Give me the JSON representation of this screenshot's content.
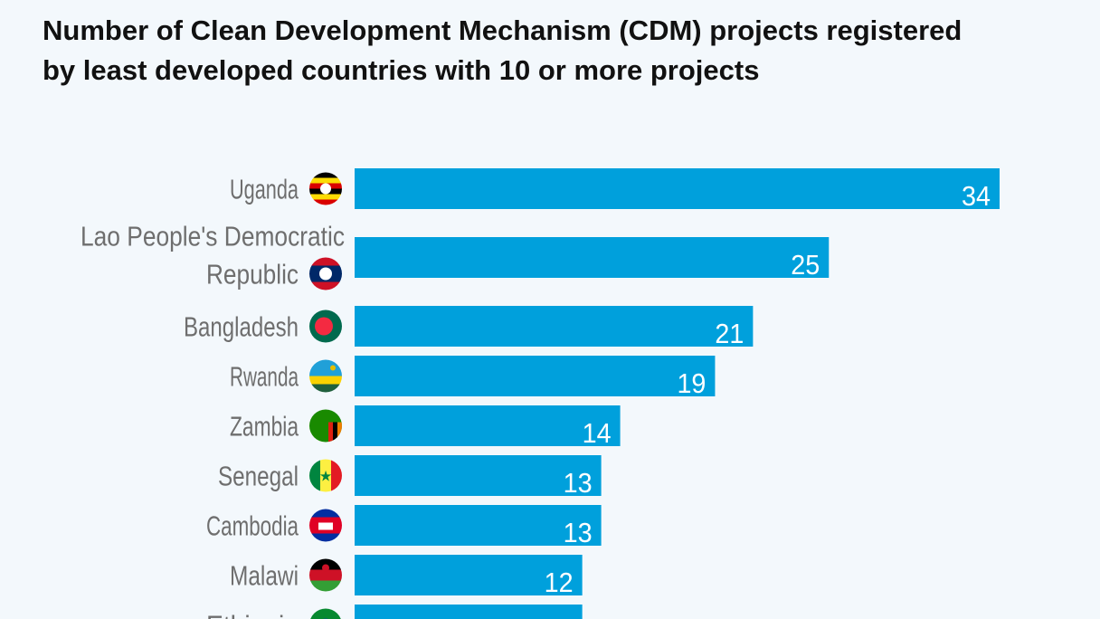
{
  "chart_data": {
    "type": "bar",
    "orientation": "horizontal",
    "title": "Number of Clean Development Mechanism (CDM) projects registered by least developed countries with 10 or more projects",
    "categories": [
      {
        "lines": [
          "Uganda"
        ],
        "flag": "uganda-flag"
      },
      {
        "lines": [
          "Lao People's Democratic",
          "Republic"
        ],
        "flag": "laos-flag"
      },
      {
        "lines": [
          "Bangladesh"
        ],
        "flag": "bangladesh-flag"
      },
      {
        "lines": [
          "Rwanda"
        ],
        "flag": "rwanda-flag"
      },
      {
        "lines": [
          "Zambia"
        ],
        "flag": "zambia-flag"
      },
      {
        "lines": [
          "Senegal"
        ],
        "flag": "senegal-flag"
      },
      {
        "lines": [
          "Cambodia"
        ],
        "flag": "cambodia-flag"
      },
      {
        "lines": [
          "Malawi"
        ],
        "flag": "malawi-flag"
      },
      {
        "lines": [
          "Ethiopia"
        ],
        "flag": "ethiopia-flag"
      }
    ],
    "values": [
      34,
      25,
      21,
      19,
      14,
      13,
      13,
      12,
      12
    ],
    "xlim": [
      0,
      34
    ],
    "bar_color": "#00a0dc",
    "grid": false,
    "data_labels": true
  }
}
